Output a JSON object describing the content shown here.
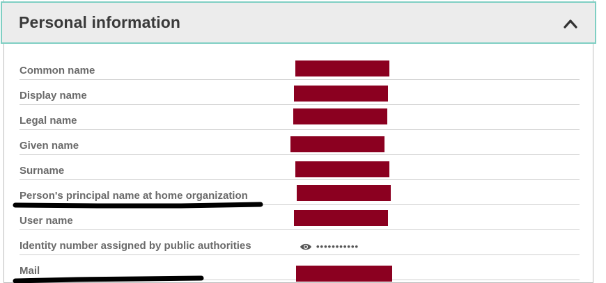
{
  "section": {
    "title": "Personal information",
    "collapse_icon": "chevron-up-icon"
  },
  "fields": [
    {
      "label": "Common name",
      "value_state": "redacted"
    },
    {
      "label": "Display name",
      "value_state": "redacted"
    },
    {
      "label": "Legal name",
      "value_state": "redacted"
    },
    {
      "label": "Given name",
      "value_state": "redacted"
    },
    {
      "label": "Surname",
      "value_state": "redacted"
    },
    {
      "label": "Person's principal name at home organization",
      "value_state": "redacted"
    },
    {
      "label": "User name",
      "value_state": "redacted"
    },
    {
      "label": "Identity number assigned by public authorities",
      "value_state": "hidden",
      "masked_value": "•••••••••••",
      "reveal_icon": "eye-icon"
    },
    {
      "label": "Mail",
      "value_state": "redacted"
    }
  ],
  "colors": {
    "redaction": "#8b0020",
    "header_bg": "#ececec",
    "header_border": "#7fcfc3",
    "label": "#6a6a6a"
  }
}
